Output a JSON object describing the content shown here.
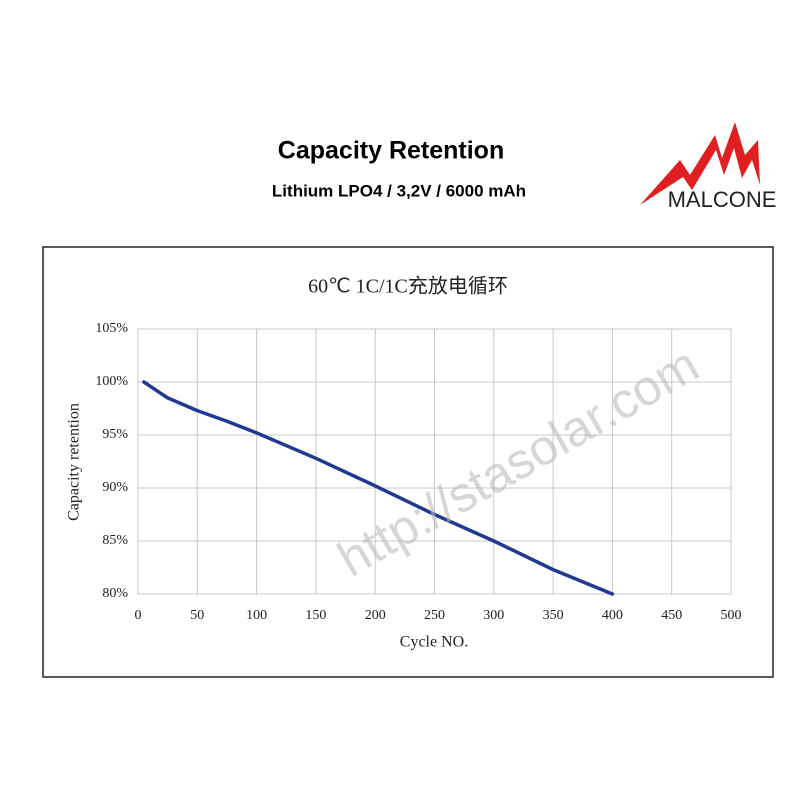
{
  "header": {
    "title": "Capacity Retention",
    "subtitle": "Lithium LPO4 / 3,2V / 6000 mAh",
    "logo": "MALCONE"
  },
  "watermark": "http://stasolar.com",
  "chart_data": {
    "type": "line",
    "title": "60℃ 1C/1C充放电循环",
    "xlabel": "Cycle NO.",
    "ylabel": "Capacity retention",
    "x": [
      5,
      25,
      50,
      75,
      100,
      150,
      200,
      250,
      300,
      350,
      400
    ],
    "values": [
      100,
      98.5,
      97.3,
      96.3,
      95.2,
      92.8,
      90.2,
      87.5,
      85,
      82.3,
      80
    ],
    "color": "#1f3a93",
    "xlim": [
      0,
      500
    ],
    "xticks": [
      0,
      50,
      100,
      150,
      200,
      250,
      300,
      350,
      400,
      450,
      500
    ],
    "ylim": [
      80,
      105
    ],
    "yticks": [
      {
        "value": 80,
        "label": "80%"
      },
      {
        "value": 85,
        "label": "85%"
      },
      {
        "value": 90,
        "label": "90%"
      },
      {
        "value": 95,
        "label": "95%"
      },
      {
        "value": 100,
        "label": "100%"
      },
      {
        "value": 105,
        "label": "105%"
      }
    ],
    "grid": true
  }
}
